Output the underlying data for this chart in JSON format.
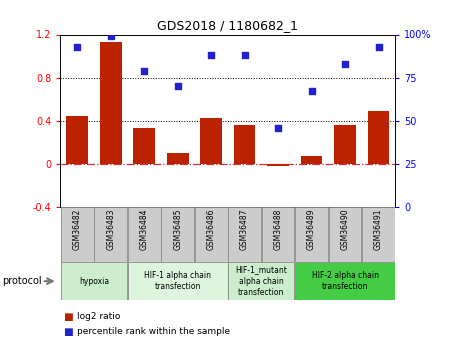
{
  "title": "GDS2018 / 1180682_1",
  "categories": [
    "GSM36482",
    "GSM36483",
    "GSM36484",
    "GSM36485",
    "GSM36486",
    "GSM36487",
    "GSM36488",
    "GSM36489",
    "GSM36490",
    "GSM36491"
  ],
  "log2_ratio": [
    0.44,
    1.13,
    0.33,
    0.1,
    0.43,
    0.36,
    -0.02,
    0.07,
    0.36,
    0.49
  ],
  "percentile_rank": [
    93,
    99,
    79,
    70,
    88,
    88,
    46,
    67,
    83,
    93
  ],
  "ylim_left": [
    -0.4,
    1.2
  ],
  "ylim_right": [
    0,
    100
  ],
  "yticks_left": [
    -0.4,
    0,
    0.4,
    0.8,
    1.2
  ],
  "yticks_right": [
    0,
    25,
    50,
    75,
    100
  ],
  "ytick_labels_right": [
    "0",
    "25",
    "50",
    "75",
    "100%"
  ],
  "bar_color": "#bb2200",
  "scatter_color": "#2222cc",
  "hline0_color": "#cc3333",
  "dotline1": 0.4,
  "dotline2": 0.8,
  "protocol_groups": [
    {
      "label": "hypoxia",
      "start": 0,
      "end": 2,
      "color": "#cceecc"
    },
    {
      "label": "HIF-1 alpha chain\ntransfection",
      "start": 2,
      "end": 5,
      "color": "#ddf5dd"
    },
    {
      "label": "HIF-1_mutant\nalpha chain\ntransfection",
      "start": 5,
      "end": 7,
      "color": "#cceecc"
    },
    {
      "label": "HIF-2 alpha chain\ntransfection",
      "start": 7,
      "end": 10,
      "color": "#44cc44"
    }
  ],
  "legend_bar_label": "log2 ratio",
  "legend_scatter_label": "percentile rank within the sample",
  "protocol_label": "protocol",
  "tick_bg_color": "#cccccc"
}
